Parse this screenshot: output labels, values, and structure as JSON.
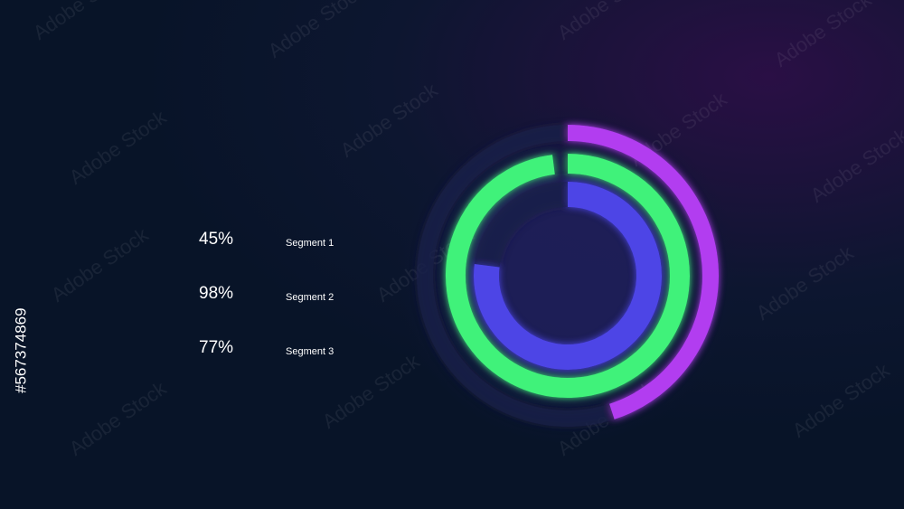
{
  "chart_data": {
    "type": "radial_bar",
    "series": [
      {
        "name": "Segment 1",
        "values": [
          45
        ],
        "value_labels": [
          "45%"
        ],
        "color": "#b23ef0"
      },
      {
        "name": "Segment 2",
        "values": [
          98
        ],
        "value_labels": [
          "98%"
        ],
        "color": "#3ff27a"
      },
      {
        "name": "Segment 3",
        "values": [
          77
        ],
        "value_labels": [
          "77%"
        ],
        "color": "#4d45e6"
      }
    ],
    "rlim": [
      0,
      100
    ]
  },
  "watermark": "Adobe Stock",
  "stock_id": "#567374869"
}
